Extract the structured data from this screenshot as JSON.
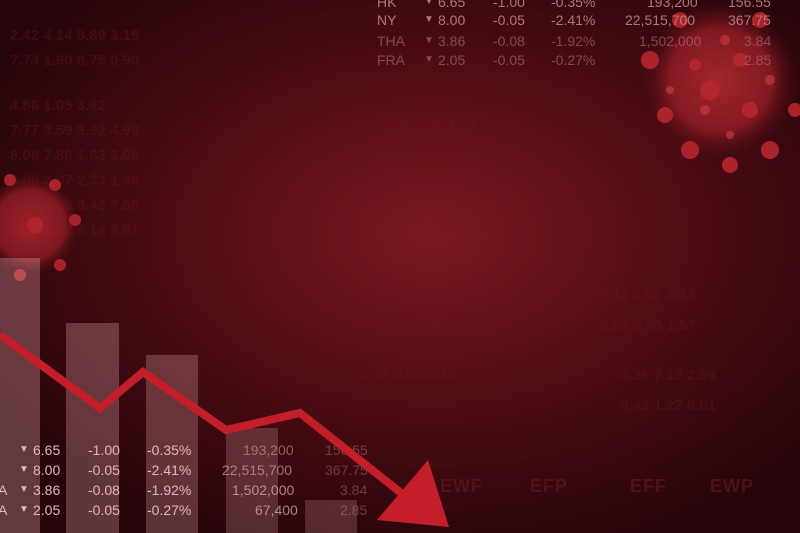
{
  "top_ticker": [
    {
      "code": "HK",
      "price": "6.65",
      "change": "-1.00",
      "percent": "-0.35%",
      "volume": "193,200",
      "value": "156.55"
    },
    {
      "code": "NY",
      "price": "8.00",
      "change": "-0.05",
      "percent": "-2.41%",
      "volume": "22,515,700",
      "value": "367.75"
    },
    {
      "code": "THA",
      "price": "3.86",
      "change": "-0.08",
      "percent": "-1.92%",
      "volume": "1,502,000",
      "value": "3.84"
    },
    {
      "code": "FRA",
      "price": "2.05",
      "change": "-0.05",
      "percent": "-0.27%",
      "volume": "",
      "value": "2.85"
    }
  ],
  "bottom_ticker": [
    {
      "code": "",
      "price": "6.65",
      "change": "-1.00",
      "percent": "-0.35%",
      "volume": "193,200",
      "value": "156.55"
    },
    {
      "code": "",
      "price": "8.00",
      "change": "-0.05",
      "percent": "-2.41%",
      "volume": "22,515,700",
      "value": "367.75"
    },
    {
      "code": "A",
      "price": "3.86",
      "change": "-0.08",
      "percent": "-1.92%",
      "volume": "1,502,000",
      "value": "3.84"
    },
    {
      "code": "A",
      "price": "2.05",
      "change": "-0.05",
      "percent": "-0.27%",
      "volume": "67,400",
      "value": "2.85"
    }
  ],
  "background_labels": [
    "EWF",
    "EFP",
    "EFF",
    "EWP"
  ],
  "colors": {
    "accent": "#c8202e",
    "background": "#5a0f17",
    "text": "#e3b5ba"
  }
}
